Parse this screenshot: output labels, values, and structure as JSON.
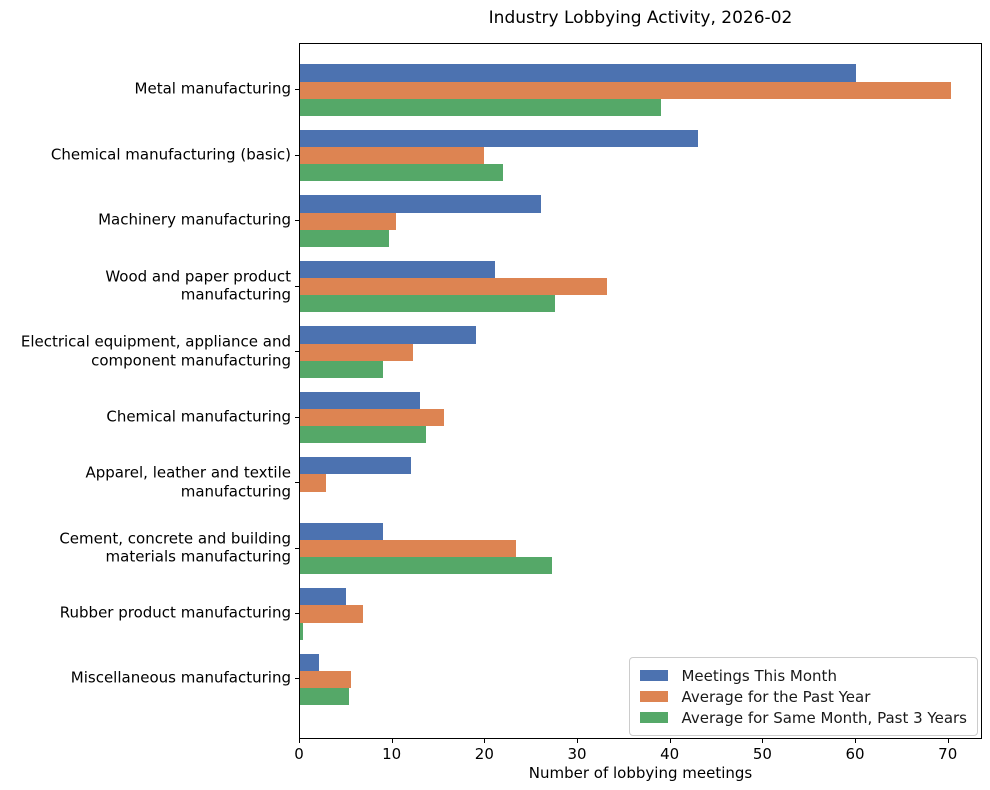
{
  "chart_data": {
    "type": "bar",
    "orientation": "horizontal",
    "title": "Industry Lobbying Activity, 2026-02",
    "xlabel": "Number of lobbying meetings",
    "ylabel": "",
    "xlim": [
      0,
      73.7
    ],
    "xticks": [
      0,
      10,
      20,
      30,
      40,
      50,
      60,
      70
    ],
    "grid": false,
    "legend_position": "lower right",
    "background_color": "#ffffff",
    "categories": [
      "Metal manufacturing",
      "Chemical manufacturing (basic)",
      "Machinery manufacturing",
      "Wood and paper product manufacturing",
      "Electrical equipment, appliance and\ncomponent manufacturing",
      "Chemical manufacturing",
      "Apparel, leather and textile\nmanufacturing",
      "Cement, concrete and building\nmaterials manufacturing",
      "Rubber product manufacturing",
      "Miscellaneous manufacturing"
    ],
    "series": [
      {
        "name": "Meetings This Month",
        "color": "#4C72B0",
        "values": [
          60,
          43,
          26,
          21,
          19,
          13,
          12,
          9,
          5,
          2
        ]
      },
      {
        "name": "Average for the Past Year",
        "color": "#DD8452",
        "values": [
          70.2,
          19.9,
          10.4,
          33.1,
          12.2,
          15.5,
          2.8,
          23.3,
          6.8,
          5.5
        ]
      },
      {
        "name": "Average for Same Month, Past 3 Years",
        "color": "#55A868",
        "values": [
          39.0,
          21.9,
          9.6,
          27.5,
          9.0,
          13.6,
          0,
          27.2,
          0.3,
          5.3
        ]
      }
    ]
  }
}
